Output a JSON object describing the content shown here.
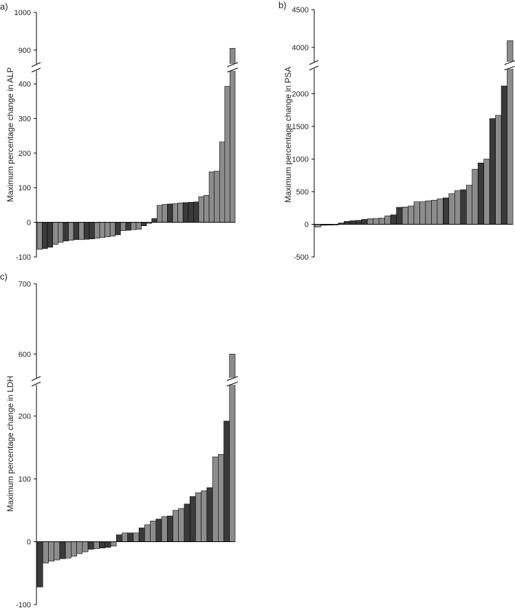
{
  "chart_data": [
    {
      "type": "bar",
      "panel_label": "a)",
      "ylabel": "Maximum percentage change in ALP",
      "ytick_labels": [
        "-100",
        "0",
        "100",
        "200",
        "300",
        "400",
        "900",
        "1000"
      ],
      "axis_break": true,
      "colors": {
        "dark": "#3a3a3a",
        "grey": "#8c8c8c"
      },
      "bars": [
        {
          "value": -78,
          "shade": "grey"
        },
        {
          "value": -76,
          "shade": "dark"
        },
        {
          "value": -72,
          "shade": "dark"
        },
        {
          "value": -64,
          "shade": "grey"
        },
        {
          "value": -58,
          "shade": "grey"
        },
        {
          "value": -54,
          "shade": "dark"
        },
        {
          "value": -52,
          "shade": "grey"
        },
        {
          "value": -50,
          "shade": "dark"
        },
        {
          "value": -50,
          "shade": "grey"
        },
        {
          "value": -49,
          "shade": "dark"
        },
        {
          "value": -48,
          "shade": "dark"
        },
        {
          "value": -46,
          "shade": "grey"
        },
        {
          "value": -44,
          "shade": "grey"
        },
        {
          "value": -42,
          "shade": "grey"
        },
        {
          "value": -40,
          "shade": "grey"
        },
        {
          "value": -36,
          "shade": "dark"
        },
        {
          "value": -24,
          "shade": "grey"
        },
        {
          "value": -23,
          "shade": "dark"
        },
        {
          "value": -21,
          "shade": "grey"
        },
        {
          "value": -20,
          "shade": "grey"
        },
        {
          "value": -10,
          "shade": "dark"
        },
        {
          "value": -3,
          "shade": "grey"
        },
        {
          "value": 11,
          "shade": "dark"
        },
        {
          "value": 49,
          "shade": "grey"
        },
        {
          "value": 52,
          "shade": "grey"
        },
        {
          "value": 53,
          "shade": "dark"
        },
        {
          "value": 54,
          "shade": "grey"
        },
        {
          "value": 56,
          "shade": "grey"
        },
        {
          "value": 57,
          "shade": "dark"
        },
        {
          "value": 58,
          "shade": "dark"
        },
        {
          "value": 59,
          "shade": "dark"
        },
        {
          "value": 74,
          "shade": "grey"
        },
        {
          "value": 78,
          "shade": "grey"
        },
        {
          "value": 146,
          "shade": "grey"
        },
        {
          "value": 148,
          "shade": "grey"
        },
        {
          "value": 232,
          "shade": "grey"
        },
        {
          "value": 393,
          "shade": "grey"
        },
        {
          "value": 905,
          "shade": "grey"
        }
      ]
    },
    {
      "type": "bar",
      "panel_label": "b)",
      "ylabel": "Maximum percentage change in PSA",
      "ytick_labels": [
        "-500",
        "0",
        "500",
        "1000",
        "1500",
        "2000",
        "4000",
        "4500"
      ],
      "axis_break": true,
      "colors": {
        "dark": "#3a3a3a",
        "grey": "#8c8c8c"
      },
      "bars": [
        {
          "value": -40,
          "shade": "grey"
        },
        {
          "value": -15,
          "shade": "dark"
        },
        {
          "value": -12,
          "shade": "dark"
        },
        {
          "value": -10,
          "shade": "dark"
        },
        {
          "value": 20,
          "shade": "dark"
        },
        {
          "value": 45,
          "shade": "dark"
        },
        {
          "value": 55,
          "shade": "dark"
        },
        {
          "value": 60,
          "shade": "dark"
        },
        {
          "value": 75,
          "shade": "dark"
        },
        {
          "value": 85,
          "shade": "grey"
        },
        {
          "value": 90,
          "shade": "grey"
        },
        {
          "value": 95,
          "shade": "grey"
        },
        {
          "value": 130,
          "shade": "grey"
        },
        {
          "value": 145,
          "shade": "dark"
        },
        {
          "value": 260,
          "shade": "dark"
        },
        {
          "value": 265,
          "shade": "grey"
        },
        {
          "value": 280,
          "shade": "grey"
        },
        {
          "value": 345,
          "shade": "grey"
        },
        {
          "value": 345,
          "shade": "grey"
        },
        {
          "value": 360,
          "shade": "grey"
        },
        {
          "value": 370,
          "shade": "grey"
        },
        {
          "value": 390,
          "shade": "grey"
        },
        {
          "value": 405,
          "shade": "dark"
        },
        {
          "value": 470,
          "shade": "grey"
        },
        {
          "value": 515,
          "shade": "grey"
        },
        {
          "value": 530,
          "shade": "dark"
        },
        {
          "value": 600,
          "shade": "grey"
        },
        {
          "value": 845,
          "shade": "grey"
        },
        {
          "value": 940,
          "shade": "dark"
        },
        {
          "value": 1000,
          "shade": "grey"
        },
        {
          "value": 1620,
          "shade": "dark"
        },
        {
          "value": 1670,
          "shade": "grey"
        },
        {
          "value": 2120,
          "shade": "dark"
        },
        {
          "value": 4090,
          "shade": "grey"
        }
      ]
    },
    {
      "type": "bar",
      "panel_label": "c)",
      "ylabel": "Maximum percentage change in LDH",
      "ytick_labels": [
        "-100",
        "0",
        "100",
        "200",
        "600",
        "700"
      ],
      "axis_break": true,
      "colors": {
        "dark": "#3a3a3a",
        "grey": "#8c8c8c"
      },
      "bars": [
        {
          "value": -72,
          "shade": "dark"
        },
        {
          "value": -34,
          "shade": "grey"
        },
        {
          "value": -31,
          "shade": "grey"
        },
        {
          "value": -29,
          "shade": "grey"
        },
        {
          "value": -27,
          "shade": "dark"
        },
        {
          "value": -26,
          "shade": "grey"
        },
        {
          "value": -23,
          "shade": "grey"
        },
        {
          "value": -19,
          "shade": "grey"
        },
        {
          "value": -16,
          "shade": "grey"
        },
        {
          "value": -12,
          "shade": "dark"
        },
        {
          "value": -11,
          "shade": "grey"
        },
        {
          "value": -10,
          "shade": "dark"
        },
        {
          "value": -9,
          "shade": "dark"
        },
        {
          "value": -7,
          "shade": "grey"
        },
        {
          "value": 11,
          "shade": "dark"
        },
        {
          "value": 14,
          "shade": "grey"
        },
        {
          "value": 14,
          "shade": "dark"
        },
        {
          "value": 14,
          "shade": "grey"
        },
        {
          "value": 22,
          "shade": "dark"
        },
        {
          "value": 27,
          "shade": "grey"
        },
        {
          "value": 33,
          "shade": "grey"
        },
        {
          "value": 36,
          "shade": "dark"
        },
        {
          "value": 40,
          "shade": "grey"
        },
        {
          "value": 41,
          "shade": "dark"
        },
        {
          "value": 50,
          "shade": "grey"
        },
        {
          "value": 53,
          "shade": "grey"
        },
        {
          "value": 60,
          "shade": "dark"
        },
        {
          "value": 72,
          "shade": "dark"
        },
        {
          "value": 78,
          "shade": "grey"
        },
        {
          "value": 81,
          "shade": "grey"
        },
        {
          "value": 86,
          "shade": "dark"
        },
        {
          "value": 135,
          "shade": "grey"
        },
        {
          "value": 139,
          "shade": "grey"
        },
        {
          "value": 192,
          "shade": "dark"
        },
        {
          "value": 600,
          "shade": "grey"
        }
      ]
    }
  ]
}
